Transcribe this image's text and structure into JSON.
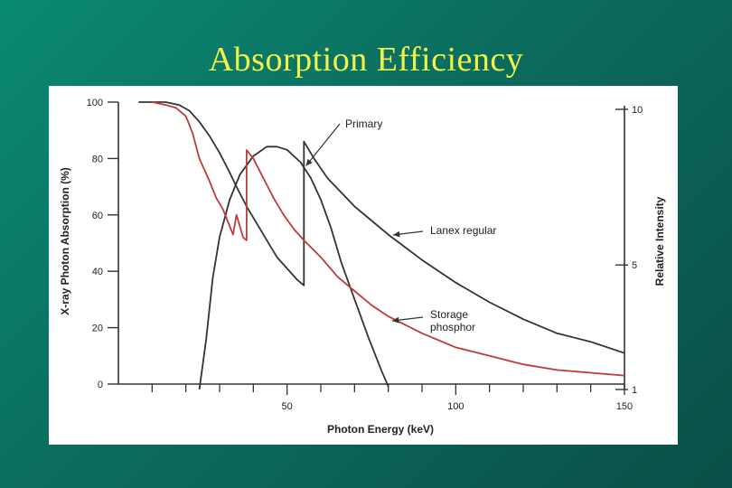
{
  "slide": {
    "title": "Absorption Efficiency"
  },
  "chart_data": {
    "type": "line",
    "xlabel": "Photon Energy (keV)",
    "ylabel": "X-ray Photon Absorption (%)",
    "y2label": "Relative Intensity",
    "xlim": [
      0,
      150
    ],
    "ylim": [
      0,
      100
    ],
    "y2lim": [
      1,
      10
    ],
    "x_ticks": [
      50,
      100,
      150
    ],
    "y_ticks": [
      0,
      20,
      40,
      60,
      80,
      100
    ],
    "y2_ticks": [
      1,
      5,
      10
    ],
    "series": [
      {
        "name": "Primary",
        "color": "#333333",
        "axis": "right",
        "points": [
          [
            24,
            1
          ],
          [
            26,
            2.6
          ],
          [
            28,
            4.6
          ],
          [
            30,
            5.9
          ],
          [
            33,
            7.1
          ],
          [
            36,
            7.9
          ],
          [
            40,
            8.5
          ],
          [
            44,
            8.8
          ],
          [
            47,
            8.8
          ],
          [
            50,
            8.7
          ],
          [
            54,
            8.3
          ],
          [
            57,
            7.8
          ],
          [
            60,
            7.1
          ],
          [
            63,
            6.2
          ],
          [
            66,
            5.1
          ],
          [
            70,
            3.9
          ],
          [
            74,
            2.7
          ],
          [
            78,
            1.6
          ],
          [
            80,
            1.1
          ]
        ]
      },
      {
        "name": "Lanex regular",
        "color": "#333333",
        "axis": "left",
        "points": [
          [
            6,
            100
          ],
          [
            10,
            100
          ],
          [
            14,
            100
          ],
          [
            18,
            99
          ],
          [
            21,
            97
          ],
          [
            24,
            93
          ],
          [
            27,
            88
          ],
          [
            30,
            82
          ],
          [
            33,
            75
          ],
          [
            35,
            70
          ],
          [
            38,
            63
          ],
          [
            41,
            57
          ],
          [
            44,
            51
          ],
          [
            47,
            45
          ],
          [
            50,
            41
          ],
          [
            53,
            37
          ],
          [
            55,
            35
          ],
          [
            55,
            86
          ],
          [
            58,
            80
          ],
          [
            62,
            73
          ],
          [
            66,
            68
          ],
          [
            70,
            63
          ],
          [
            75,
            58
          ],
          [
            80,
            53
          ],
          [
            90,
            44
          ],
          [
            100,
            36
          ],
          [
            110,
            29
          ],
          [
            120,
            23
          ],
          [
            130,
            18
          ],
          [
            140,
            15
          ],
          [
            150,
            11
          ]
        ]
      },
      {
        "name": "Storage phosphor",
        "color": "#c03a3a",
        "axis": "left",
        "points": [
          [
            10,
            100
          ],
          [
            14,
            99
          ],
          [
            17,
            98
          ],
          [
            20,
            95
          ],
          [
            22,
            89
          ],
          [
            24,
            80
          ],
          [
            27,
            72
          ],
          [
            29,
            66
          ],
          [
            31,
            62
          ],
          [
            33,
            56
          ],
          [
            34,
            53
          ],
          [
            35,
            60
          ],
          [
            36,
            56
          ],
          [
            37,
            52
          ],
          [
            38,
            51
          ],
          [
            38,
            83
          ],
          [
            40,
            80
          ],
          [
            43,
            73
          ],
          [
            46,
            66
          ],
          [
            49,
            60
          ],
          [
            52,
            55
          ],
          [
            55,
            51
          ],
          [
            60,
            45
          ],
          [
            65,
            38
          ],
          [
            70,
            33
          ],
          [
            75,
            28
          ],
          [
            80,
            24
          ],
          [
            90,
            18
          ],
          [
            100,
            13
          ],
          [
            110,
            10
          ],
          [
            120,
            7
          ],
          [
            130,
            5
          ],
          [
            140,
            4
          ],
          [
            150,
            3
          ]
        ]
      }
    ],
    "annotations": [
      {
        "text": "Primary",
        "series": "Primary"
      },
      {
        "text": "Lanex regular",
        "series": "Lanex regular"
      },
      {
        "lines": [
          "Storage",
          "phosphor"
        ],
        "series": "Storage phosphor"
      }
    ]
  }
}
